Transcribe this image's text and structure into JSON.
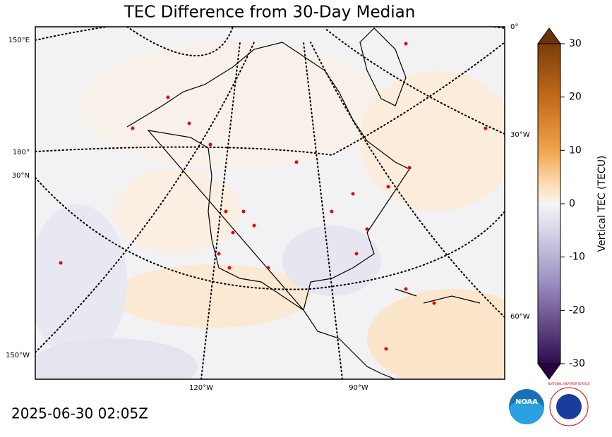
{
  "title": "TEC Difference from 30-Day Median",
  "timestamp": "2025-06-30 02:05Z",
  "map": {
    "labels": [
      "150°E",
      "180°",
      "30°N",
      "150°W",
      "120°W",
      "90°W",
      "0°",
      "30°W",
      "60°W"
    ]
  },
  "colorbar": {
    "label": "Vertical TEC (TECU)",
    "lim": [
      -30,
      30
    ],
    "ticks": [
      -30,
      -20,
      -10,
      0,
      10,
      20,
      30
    ]
  },
  "logos": [
    "NOAA",
    "NATIONAL WEATHER SERVICE"
  ]
}
